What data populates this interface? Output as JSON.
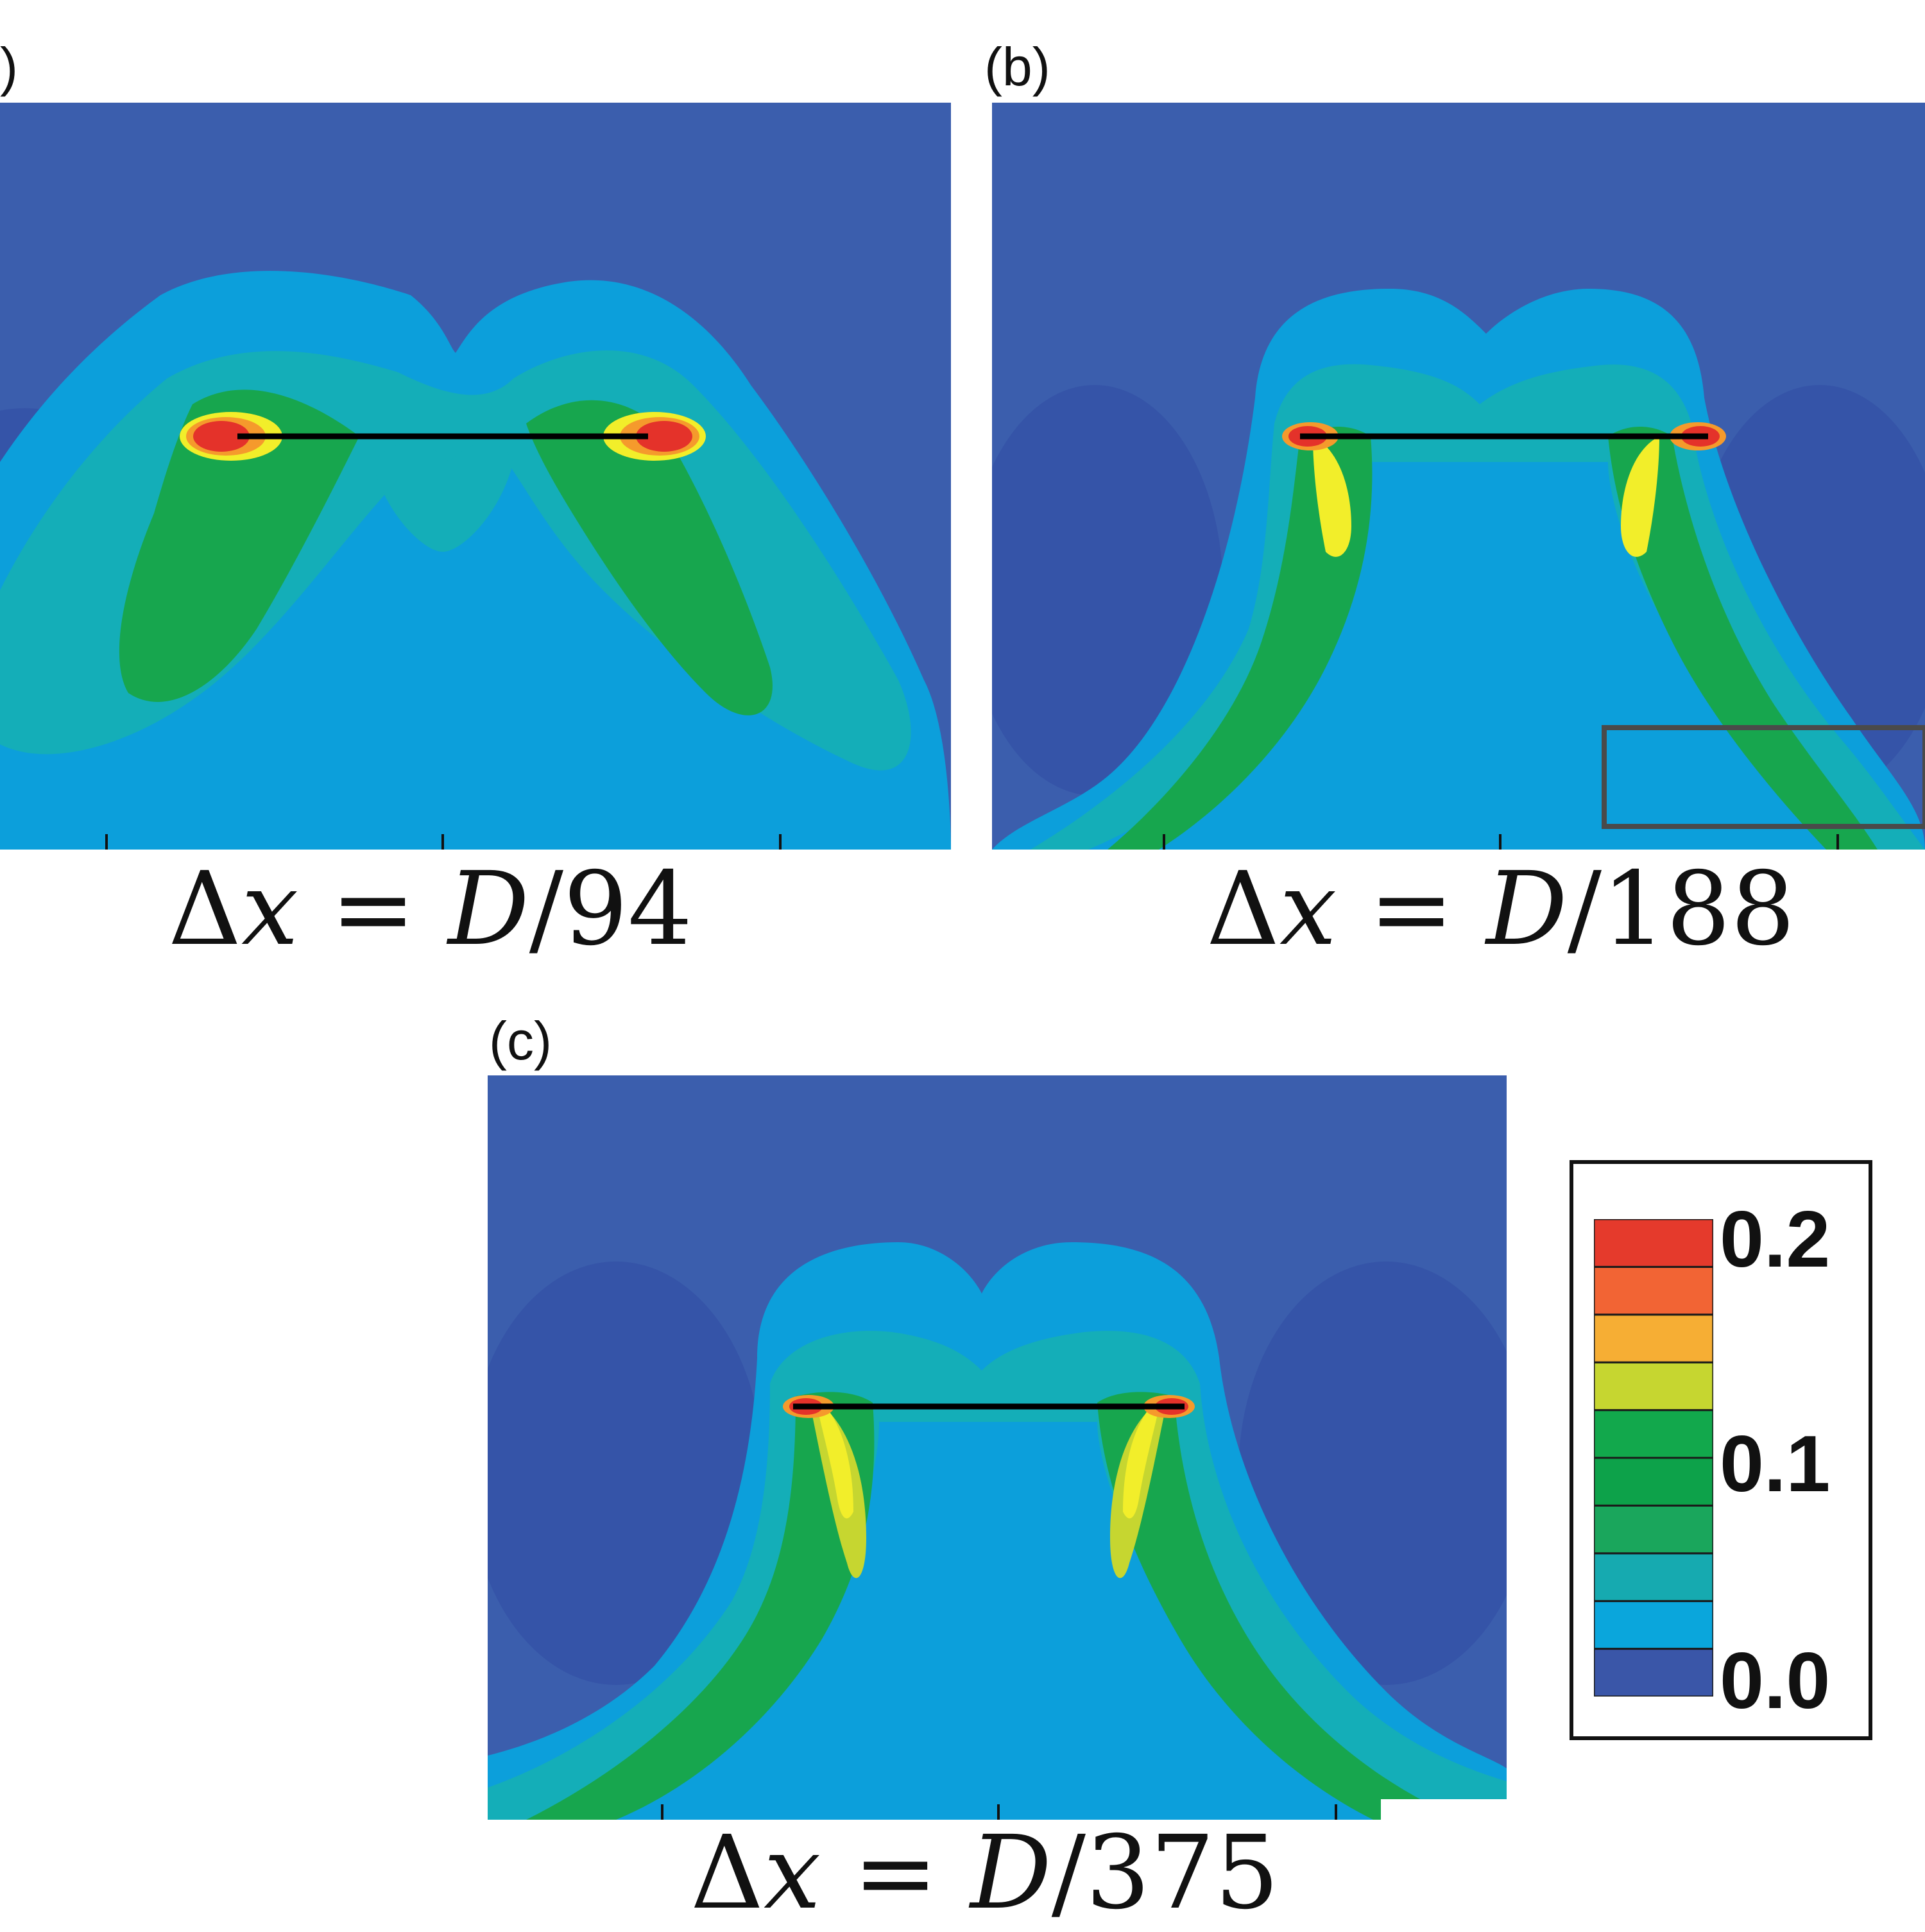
{
  "panels": {
    "a": {
      "letter": ")",
      "caption_prefix": "Δ",
      "caption_var": "x",
      "caption_eq": " = ",
      "caption_D": "D",
      "caption_rest": "/94"
    },
    "b": {
      "letter": "(b)",
      "caption_prefix": "Δ",
      "caption_var": "x",
      "caption_eq": " = ",
      "caption_D": "D",
      "caption_rest": "/188"
    },
    "c": {
      "letter": "(c)",
      "caption_prefix": "Δ",
      "caption_var": "x",
      "caption_eq": " = ",
      "caption_D": "D",
      "caption_rest": "/375"
    }
  },
  "legend": {
    "labels": [
      "0.2",
      "0.1",
      "0.0"
    ],
    "levels": [
      0.0,
      0.02,
      0.04,
      0.06,
      0.08,
      0.1,
      0.12,
      0.14,
      0.16,
      0.18,
      0.2
    ],
    "colors": [
      "#3a56a8",
      "#0aa6dc",
      "#16aab0",
      "#1aa65c",
      "#0da24a",
      "#12a84c",
      "#c6d630",
      "#f6ae34",
      "#f26434",
      "#e53a2c"
    ]
  },
  "colors": {
    "background_field": "#3b5ead",
    "deep_blue": "#3351a6",
    "light_blue": "#0c9fdb",
    "cyan": "#14aeb8",
    "green": "#17a64e",
    "yellow": "#f2ee2a",
    "orange": "#f59a2c",
    "red": "#e4322a",
    "plate": "#000000"
  }
}
